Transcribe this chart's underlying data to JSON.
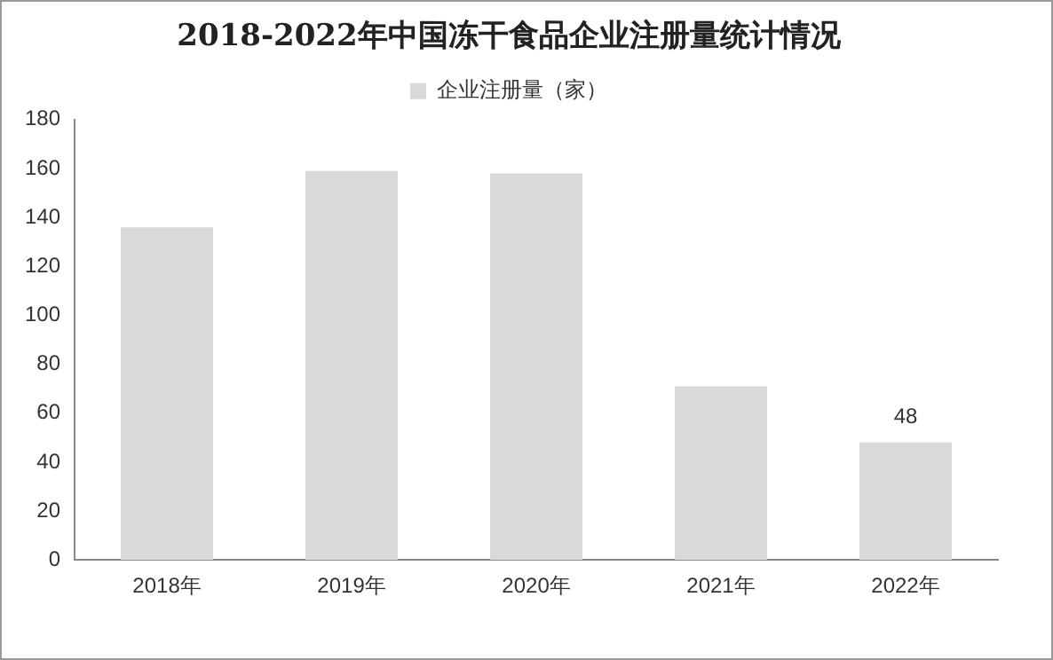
{
  "chart_data": {
    "type": "bar",
    "title": "2018-2022年中国冻干食品企业注册量统计情况",
    "categories": [
      "2018年",
      "2019年",
      "2020年",
      "2021年",
      "2022年"
    ],
    "series": [
      {
        "name": "企业注册量（家）",
        "color": "#d9d9d9",
        "values": [
          136,
          159,
          158,
          71,
          48
        ],
        "value_labels": [
          null,
          null,
          null,
          null,
          "48"
        ]
      }
    ],
    "ylim": [
      0,
      180
    ],
    "yticks": [
      0,
      20,
      40,
      60,
      80,
      100,
      120,
      140,
      160,
      180
    ],
    "grid": false,
    "legend": "top"
  }
}
